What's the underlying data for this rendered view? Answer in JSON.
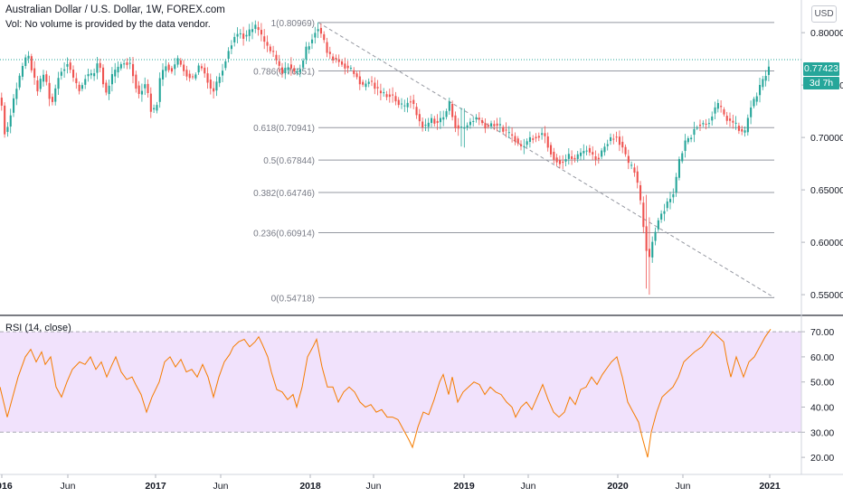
{
  "header": {
    "title": "Australian Dollar / U.S. Dollar, 1W, FOREX.com",
    "volume_note": "Vol: No volume is provided by the data vendor."
  },
  "currency_button": "USD",
  "last_price": "0.77423",
  "countdown": "3d 7h",
  "rsi_title": "RSI (14, close)",
  "colors": {
    "up": "#26a69a",
    "down": "#ef5350",
    "rsi_line": "#f57c00",
    "rsi_band": "#e9d3fa",
    "fib_line": "#9598a1"
  },
  "chart_data": [
    {
      "type": "candlestick",
      "title": "Australian Dollar / U.S. Dollar, 1W, FOREX.com",
      "x_ticks": [
        "2016",
        "Jun",
        "2017",
        "Jun",
        "2018",
        "Jun",
        "2019",
        "Jun",
        "2020",
        "Jun",
        "2021"
      ],
      "y_ticks": [
        "0.80000",
        "0.75000",
        "0.70000",
        "0.65000",
        "0.60000",
        "0.55000"
      ],
      "ylim": [
        0.538,
        0.826
      ],
      "path_points": [
        [
          0,
          0.738
        ],
        [
          5,
          0.7
        ],
        [
          15,
          0.74
        ],
        [
          25,
          0.771
        ],
        [
          30,
          0.78
        ],
        [
          40,
          0.745
        ],
        [
          48,
          0.762
        ],
        [
          56,
          0.73
        ],
        [
          64,
          0.76
        ],
        [
          74,
          0.772
        ],
        [
          82,
          0.752
        ],
        [
          88,
          0.745
        ],
        [
          94,
          0.76
        ],
        [
          102,
          0.758
        ],
        [
          108,
          0.775
        ],
        [
          116,
          0.74
        ],
        [
          122,
          0.757
        ],
        [
          128,
          0.764
        ],
        [
          135,
          0.772
        ],
        [
          143,
          0.77
        ],
        [
          150,
          0.748
        ],
        [
          154,
          0.738
        ],
        [
          158,
          0.755
        ],
        [
          163,
          0.741
        ],
        [
          167,
          0.722
        ],
        [
          172,
          0.73
        ],
        [
          176,
          0.756
        ],
        [
          182,
          0.77
        ],
        [
          188,
          0.764
        ],
        [
          196,
          0.774
        ],
        [
          204,
          0.762
        ],
        [
          212,
          0.756
        ],
        [
          220,
          0.77
        ],
        [
          228,
          0.757
        ],
        [
          234,
          0.742
        ],
        [
          240,
          0.755
        ],
        [
          246,
          0.768
        ],
        [
          252,
          0.785
        ],
        [
          258,
          0.796
        ],
        [
          264,
          0.8
        ],
        [
          270,
          0.795
        ],
        [
          277,
          0.803
        ],
        [
          283,
          0.806
        ],
        [
          290,
          0.793
        ],
        [
          296,
          0.785
        ],
        [
          302,
          0.778
        ],
        [
          306,
          0.77
        ],
        [
          312,
          0.76
        ],
        [
          318,
          0.77
        ],
        [
          326,
          0.76
        ],
        [
          332,
          0.768
        ],
        [
          338,
          0.785
        ],
        [
          344,
          0.795
        ],
        [
          350,
          0.806
        ],
        [
          356,
          0.795
        ],
        [
          362,
          0.778
        ],
        [
          370,
          0.775
        ],
        [
          378,
          0.77
        ],
        [
          386,
          0.765
        ],
        [
          394,
          0.758
        ],
        [
          400,
          0.748
        ],
        [
          408,
          0.755
        ],
        [
          416,
          0.745
        ],
        [
          424,
          0.741
        ],
        [
          432,
          0.741
        ],
        [
          440,
          0.732
        ],
        [
          446,
          0.728
        ],
        [
          452,
          0.738
        ],
        [
          458,
          0.726
        ],
        [
          464,
          0.713
        ],
        [
          470,
          0.71
        ],
        [
          476,
          0.718
        ],
        [
          482,
          0.714
        ],
        [
          490,
          0.72
        ],
        [
          496,
          0.732
        ],
        [
          502,
          0.712
        ],
        [
          508,
          0.708
        ],
        [
          514,
          0.71
        ],
        [
          520,
          0.716
        ],
        [
          526,
          0.719
        ],
        [
          532,
          0.714
        ],
        [
          538,
          0.71
        ],
        [
          544,
          0.714
        ],
        [
          552,
          0.71
        ],
        [
          560,
          0.704
        ],
        [
          568,
          0.7
        ],
        [
          574,
          0.69
        ],
        [
          580,
          0.694
        ],
        [
          586,
          0.7
        ],
        [
          594,
          0.702
        ],
        [
          600,
          0.705
        ],
        [
          606,
          0.69
        ],
        [
          612,
          0.68
        ],
        [
          620,
          0.676
        ],
        [
          628,
          0.682
        ],
        [
          634,
          0.679
        ],
        [
          640,
          0.684
        ],
        [
          648,
          0.69
        ],
        [
          656,
          0.68
        ],
        [
          662,
          0.682
        ],
        [
          670,
          0.696
        ],
        [
          676,
          0.7
        ],
        [
          680,
          0.702
        ],
        [
          688,
          0.69
        ],
        [
          694,
          0.673
        ],
        [
          700,
          0.67
        ],
        [
          706,
          0.646
        ],
        [
          712,
          0.605
        ],
        [
          716,
          0.58
        ],
        [
          720,
          0.6
        ],
        [
          726,
          0.62
        ],
        [
          732,
          0.63
        ],
        [
          738,
          0.64
        ],
        [
          744,
          0.648
        ],
        [
          750,
          0.677
        ],
        [
          756,
          0.695
        ],
        [
          762,
          0.7
        ],
        [
          768,
          0.712
        ],
        [
          776,
          0.713
        ],
        [
          782,
          0.714
        ],
        [
          788,
          0.726
        ],
        [
          794,
          0.731
        ],
        [
          800,
          0.72
        ],
        [
          806,
          0.716
        ],
        [
          812,
          0.712
        ],
        [
          818,
          0.706
        ],
        [
          822,
          0.702
        ],
        [
          828,
          0.728
        ],
        [
          834,
          0.736
        ],
        [
          840,
          0.75
        ],
        [
          846,
          0.76
        ],
        [
          852,
          0.774
        ]
      ],
      "fibonacci_retracement": [
        {
          "label": "1(0.80969)",
          "value": 0.80969
        },
        {
          "label": "0.786(0.76351)",
          "value": 0.76351
        },
        {
          "label": "0.618(0.70941)",
          "value": 0.70941
        },
        {
          "label": "0.5(0.67844)",
          "value": 0.67844
        },
        {
          "label": "0.382(0.64746)",
          "value": 0.64746
        },
        {
          "label": "0.236(0.60914)",
          "value": 0.60914
        },
        {
          "label": "0(0.54718)",
          "value": 0.54718
        }
      ],
      "last_price": 0.77423
    },
    {
      "type": "line",
      "title": "RSI (14, close)",
      "y_ticks": [
        "70.00",
        "60.00",
        "50.00",
        "40.00",
        "30.00",
        "20.00"
      ],
      "ylim": [
        15,
        74
      ],
      "band": [
        30,
        70
      ],
      "points": [
        [
          0,
          48
        ],
        [
          8,
          36
        ],
        [
          14,
          44
        ],
        [
          20,
          52
        ],
        [
          28,
          60
        ],
        [
          34,
          63
        ],
        [
          40,
          58
        ],
        [
          46,
          62
        ],
        [
          50,
          57
        ],
        [
          56,
          60
        ],
        [
          62,
          48
        ],
        [
          68,
          44
        ],
        [
          74,
          50
        ],
        [
          80,
          55
        ],
        [
          88,
          58
        ],
        [
          94,
          57
        ],
        [
          100,
          60
        ],
        [
          106,
          55
        ],
        [
          112,
          58
        ],
        [
          118,
          52
        ],
        [
          124,
          57
        ],
        [
          128,
          60
        ],
        [
          134,
          54
        ],
        [
          140,
          51
        ],
        [
          146,
          52
        ],
        [
          150,
          49
        ],
        [
          156,
          45
        ],
        [
          162,
          38
        ],
        [
          168,
          44
        ],
        [
          176,
          50
        ],
        [
          182,
          58
        ],
        [
          188,
          60
        ],
        [
          194,
          56
        ],
        [
          200,
          59
        ],
        [
          206,
          54
        ],
        [
          212,
          55
        ],
        [
          218,
          52
        ],
        [
          224,
          57
        ],
        [
          230,
          52
        ],
        [
          236,
          44
        ],
        [
          242,
          52
        ],
        [
          248,
          58
        ],
        [
          254,
          61
        ],
        [
          258,
          64
        ],
        [
          264,
          66
        ],
        [
          270,
          67
        ],
        [
          276,
          64
        ],
        [
          282,
          66
        ],
        [
          286,
          68
        ],
        [
          290,
          65
        ],
        [
          296,
          60
        ],
        [
          300,
          54
        ],
        [
          306,
          47
        ],
        [
          312,
          46
        ],
        [
          318,
          43
        ],
        [
          324,
          45
        ],
        [
          328,
          40
        ],
        [
          334,
          48
        ],
        [
          340,
          60
        ],
        [
          346,
          64
        ],
        [
          350,
          67
        ],
        [
          356,
          56
        ],
        [
          362,
          48
        ],
        [
          368,
          48
        ],
        [
          374,
          42
        ],
        [
          380,
          46
        ],
        [
          386,
          48
        ],
        [
          392,
          46
        ],
        [
          398,
          42
        ],
        [
          404,
          40
        ],
        [
          410,
          41
        ],
        [
          416,
          38
        ],
        [
          422,
          39
        ],
        [
          428,
          36
        ],
        [
          434,
          36
        ],
        [
          440,
          35
        ],
        [
          446,
          31
        ],
        [
          452,
          27
        ],
        [
          456,
          24
        ],
        [
          462,
          32
        ],
        [
          468,
          38
        ],
        [
          474,
          37
        ],
        [
          480,
          43
        ],
        [
          486,
          50
        ],
        [
          490,
          53
        ],
        [
          496,
          45
        ],
        [
          500,
          52
        ],
        [
          506,
          42
        ],
        [
          512,
          46
        ],
        [
          518,
          48
        ],
        [
          524,
          50
        ],
        [
          530,
          49
        ],
        [
          536,
          45
        ],
        [
          542,
          48
        ],
        [
          548,
          46
        ],
        [
          554,
          45
        ],
        [
          560,
          42
        ],
        [
          566,
          40
        ],
        [
          570,
          36
        ],
        [
          576,
          40
        ],
        [
          582,
          42
        ],
        [
          588,
          39
        ],
        [
          594,
          44
        ],
        [
          600,
          49
        ],
        [
          606,
          43
        ],
        [
          612,
          38
        ],
        [
          618,
          36
        ],
        [
          624,
          38
        ],
        [
          630,
          44
        ],
        [
          636,
          41
        ],
        [
          642,
          47
        ],
        [
          648,
          48
        ],
        [
          654,
          52
        ],
        [
          660,
          49
        ],
        [
          666,
          53
        ],
        [
          672,
          56
        ],
        [
          676,
          58
        ],
        [
          682,
          60
        ],
        [
          688,
          52
        ],
        [
          694,
          42
        ],
        [
          700,
          38
        ],
        [
          706,
          34
        ],
        [
          710,
          28
        ],
        [
          716,
          20
        ],
        [
          720,
          30
        ],
        [
          726,
          38
        ],
        [
          732,
          44
        ],
        [
          738,
          46
        ],
        [
          744,
          48
        ],
        [
          750,
          52
        ],
        [
          756,
          58
        ],
        [
          762,
          60
        ],
        [
          768,
          62
        ],
        [
          776,
          64
        ],
        [
          782,
          67
        ],
        [
          788,
          70
        ],
        [
          794,
          68
        ],
        [
          800,
          66
        ],
        [
          804,
          58
        ],
        [
          808,
          52
        ],
        [
          814,
          60
        ],
        [
          818,
          56
        ],
        [
          822,
          52
        ],
        [
          828,
          58
        ],
        [
          834,
          60
        ],
        [
          840,
          64
        ],
        [
          846,
          68
        ],
        [
          852,
          71
        ]
      ]
    }
  ]
}
